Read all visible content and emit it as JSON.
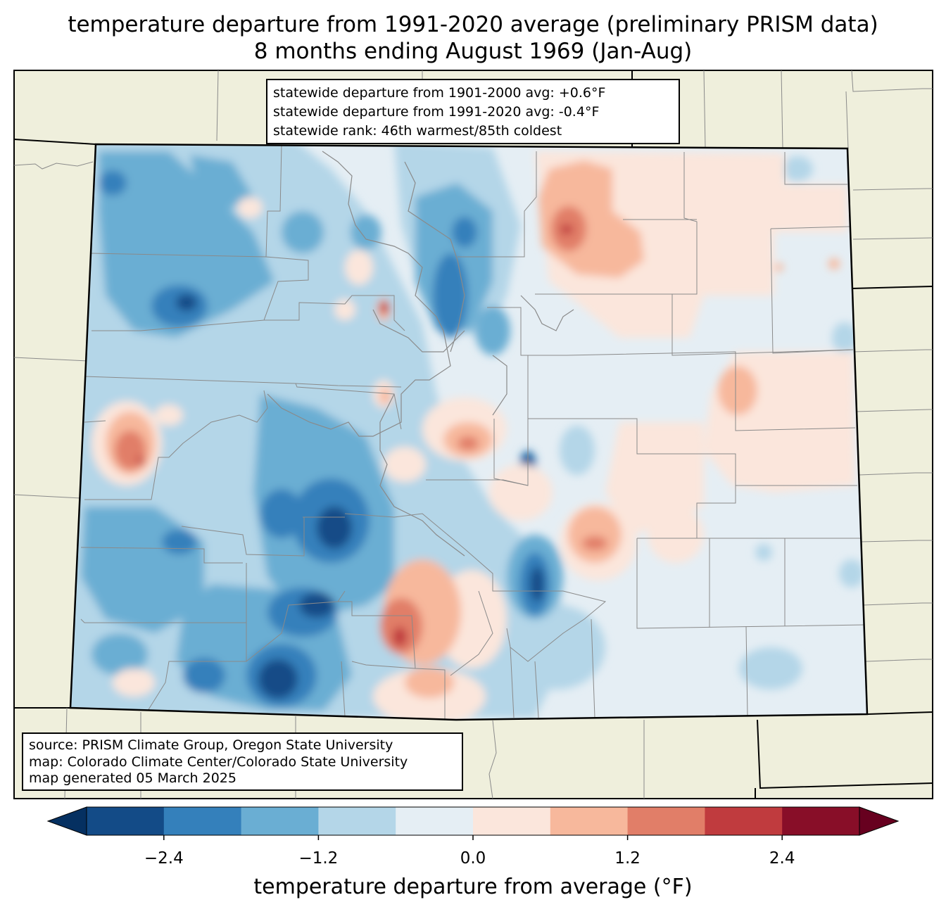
{
  "title": {
    "line1": "temperature departure from 1991-2020 average (preliminary PRISM data)",
    "line2": "8 months ending August 1969 (Jan-Aug)"
  },
  "stats": {
    "line1": "statewide departure from 1901-2000 avg: +0.6°F",
    "line2": "statewide departure from 1991-2020 avg: -0.4°F",
    "line3": "statewide rank: 46th warmest/85th coldest"
  },
  "source": {
    "line1": "source: PRISM Climate Group, Oregon State University",
    "line2": "map: Colorado Climate Center/Colorado State University",
    "line3": "map generated 05 March 2025"
  },
  "colorbar": {
    "label": "temperature departure from average (°F)",
    "ticks": [
      "−2.4",
      "−1.2",
      "0.0",
      "1.2",
      "2.4"
    ],
    "tick_values": [
      -2.4,
      -1.2,
      0.0,
      1.2,
      2.4
    ],
    "range": [
      -3.0,
      3.0
    ],
    "step": 0.6,
    "colors": [
      "#134b87",
      "#3480bb",
      "#6aaed3",
      "#b4d6e8",
      "#e5eef4",
      "#fbe6dc",
      "#f7b89c",
      "#e17e68",
      "#c03b3e",
      "#880e28"
    ],
    "under_color": "#053061",
    "over_color": "#67001f"
  },
  "colors": {
    "land": "#efefdc",
    "outline": "#000000",
    "county_lines": "#8a8a8a"
  }
}
